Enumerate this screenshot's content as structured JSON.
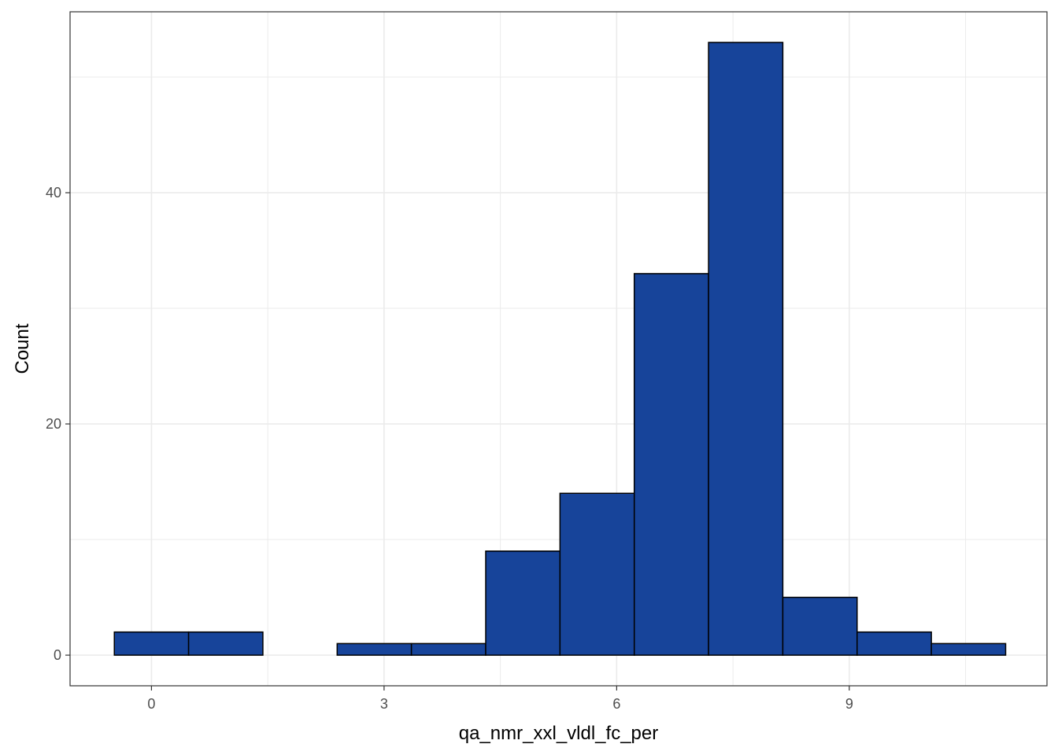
{
  "chart_data": {
    "type": "bar",
    "title": "",
    "xlabel": "qa_nmr_xxl_vldl_fc_per",
    "ylabel": "Count",
    "xlim": [
      -1.05,
      11.55
    ],
    "ylim": [
      -2.65,
      55.65
    ],
    "x_ticks": [
      0,
      3,
      6,
      9
    ],
    "x_minor_ticks": [
      1.5,
      4.5,
      7.5,
      10.5
    ],
    "y_ticks": [
      0,
      20,
      40
    ],
    "y_minor_ticks": [
      10,
      30,
      50
    ],
    "grid": true,
    "bin_width": 0.958,
    "bins": [
      {
        "x0": -0.479,
        "x1": 0.479,
        "count": 2
      },
      {
        "x0": 0.479,
        "x1": 1.437,
        "count": 2
      },
      {
        "x0": 1.437,
        "x1": 2.395,
        "count": 0
      },
      {
        "x0": 2.395,
        "x1": 3.353,
        "count": 1
      },
      {
        "x0": 3.353,
        "x1": 4.311,
        "count": 1
      },
      {
        "x0": 4.311,
        "x1": 5.269,
        "count": 9
      },
      {
        "x0": 5.269,
        "x1": 6.227,
        "count": 14
      },
      {
        "x0": 6.227,
        "x1": 7.185,
        "count": 33
      },
      {
        "x0": 7.185,
        "x1": 8.143,
        "count": 53
      },
      {
        "x0": 8.143,
        "x1": 9.101,
        "count": 5
      },
      {
        "x0": 9.101,
        "x1": 10.059,
        "count": 2
      },
      {
        "x0": 10.059,
        "x1": 11.017,
        "count": 1
      }
    ],
    "colors": {
      "bar_fill": "#17449A",
      "bar_stroke": "#000000",
      "grid": "#EBEBEB",
      "panel_border": "#333333"
    }
  }
}
